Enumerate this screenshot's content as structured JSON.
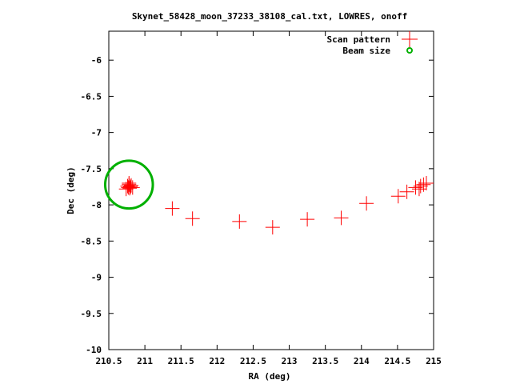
{
  "chart_data": {
    "type": "scatter",
    "title": "Skynet_58428_moon_37233_38108_cal.txt, LOWRES, onoff",
    "xlabel": "RA (deg)",
    "ylabel": "Dec (deg)",
    "xlim": [
      210.5,
      215
    ],
    "ylim": [
      -10,
      -5.6
    ],
    "x_ticks": [
      "210.5",
      "211",
      "211.5",
      "212",
      "212.5",
      "213",
      "213.5",
      "214",
      "214.5",
      "215"
    ],
    "y_ticks": [
      "-6",
      "-6.5",
      "-7",
      "-7.5",
      "-8",
      "-8.5",
      "-9",
      "-9.5",
      "-10"
    ],
    "grid": false,
    "legend_position": "top-right",
    "colors": {
      "scan": "#ff0000",
      "beam": "#00b000"
    },
    "series": [
      {
        "name": "Scan pattern",
        "marker": "plus",
        "points": [
          [
            210.76,
            -7.74
          ],
          [
            210.77,
            -7.76
          ],
          [
            210.78,
            -7.72
          ],
          [
            210.79,
            -7.77
          ],
          [
            210.8,
            -7.75
          ],
          [
            210.81,
            -7.73
          ],
          [
            210.83,
            -7.76
          ],
          [
            210.74,
            -7.78
          ],
          [
            210.78,
            -7.7
          ],
          [
            211.38,
            -8.05
          ],
          [
            211.66,
            -8.19
          ],
          [
            212.31,
            -8.23
          ],
          [
            212.77,
            -8.31
          ],
          [
            213.25,
            -8.2
          ],
          [
            213.72,
            -8.18
          ],
          [
            214.07,
            -7.98
          ],
          [
            214.51,
            -7.88
          ],
          [
            214.63,
            -7.82
          ],
          [
            214.75,
            -7.76
          ],
          [
            214.8,
            -7.78
          ],
          [
            214.82,
            -7.74
          ],
          [
            214.86,
            -7.72
          ],
          [
            214.9,
            -7.7
          ]
        ]
      },
      {
        "name": "Beam size",
        "marker": "circle",
        "center": [
          210.78,
          -7.72
        ],
        "radius_deg": 0.33
      }
    ]
  }
}
